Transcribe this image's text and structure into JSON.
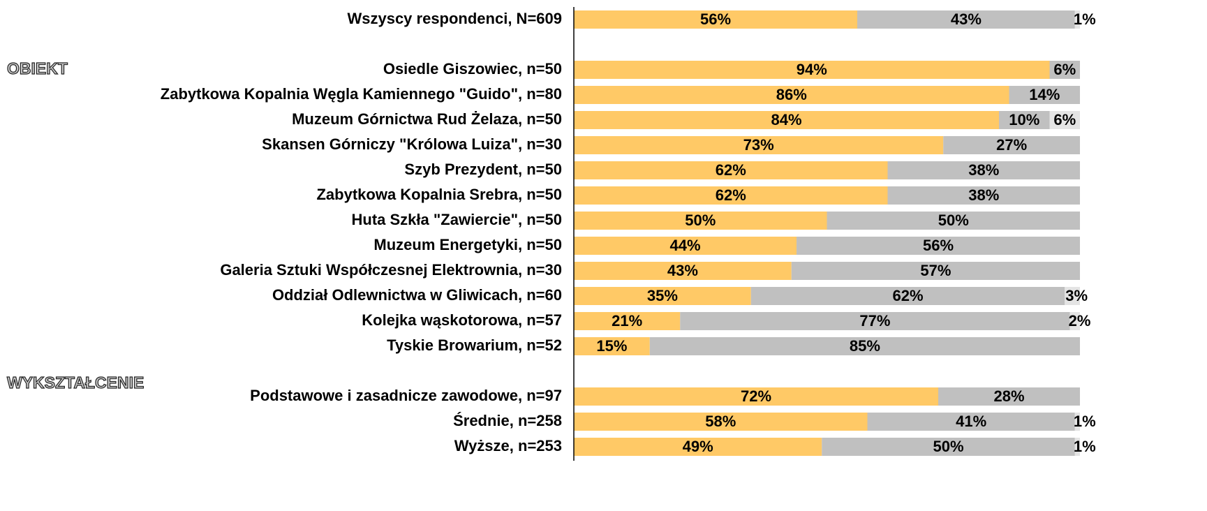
{
  "chart_data": {
    "type": "stacked_bar_horizontal",
    "categories": [
      "Wszyscy respondenci, N=609",
      null,
      "Osiedle Giszowiec, n=50",
      "Zabytkowa Kopalnia Węgla Kamiennego \"Guido\", n=80",
      "Muzeum Górnictwa Rud Żelaza, n=50",
      "Skansen Górniczy \"Królowa Luiza\", n=30",
      "Szyb Prezydent, n=50",
      "Zabytkowa Kopalnia Srebra, n=50",
      "Huta Szkła \"Zawiercie\", n=50",
      "Muzeum Energetyki, n=50",
      "Galeria Sztuki Współczesnej Elektrownia, n=30",
      "Oddział Odlewnictwa w Gliwicach, n=60",
      "Kolejka wąskotorowa, n=57",
      "Tyskie Browarium, n=52",
      null,
      "Podstawowe i zasadnicze zawodowe, n=97",
      "Średnie, n=258",
      "Wyższe, n=253"
    ],
    "series": [
      {
        "color": "#FFC966",
        "values": [
          56,
          null,
          94,
          86,
          84,
          73,
          62,
          62,
          50,
          44,
          43,
          35,
          21,
          15,
          null,
          72,
          58,
          49
        ],
        "value_labels": [
          "56%",
          null,
          "94%",
          "86%",
          "84%",
          "73%",
          "62%",
          "62%",
          "50%",
          "44%",
          "43%",
          "35%",
          "21%",
          "15%",
          null,
          "72%",
          "58%",
          "49%"
        ]
      },
      {
        "color": "#C0C0C0",
        "values": [
          43,
          null,
          6,
          14,
          10,
          27,
          38,
          38,
          50,
          56,
          57,
          62,
          77,
          85,
          null,
          28,
          41,
          50
        ],
        "value_labels": [
          "43%",
          null,
          "6%",
          "14%",
          "10%",
          "27%",
          "38%",
          "38%",
          "50%",
          "56%",
          "57%",
          "62%",
          "77%",
          "85%",
          null,
          "28%",
          "41%",
          "50%"
        ]
      },
      {
        "color": "#E4E4E4",
        "values": [
          1,
          null,
          null,
          null,
          6,
          null,
          null,
          null,
          null,
          null,
          null,
          3,
          2,
          null,
          null,
          null,
          1,
          1
        ],
        "value_labels": [
          "1%",
          null,
          null,
          null,
          "6%",
          null,
          null,
          null,
          null,
          null,
          null,
          "3%",
          "2%",
          null,
          null,
          null,
          "1%",
          "1%"
        ]
      }
    ],
    "group_labels": [
      "OBIEKT",
      "WYKSZTAŁCENIE"
    ],
    "xlim": [
      0,
      100
    ]
  }
}
